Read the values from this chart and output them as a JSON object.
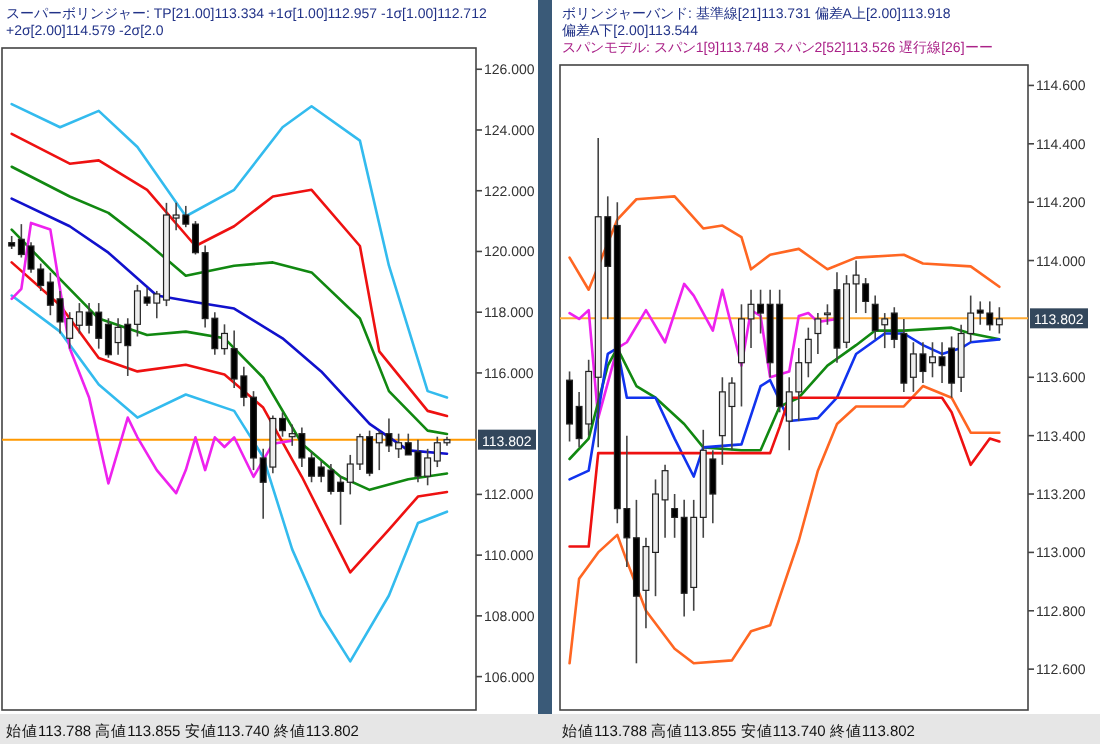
{
  "chart_data": [
    {
      "type": "candlestick",
      "title": "スーパーボリンジャー: TP[21.00]113.334 +1σ[1.00]112.957 -1σ[1.00]112.712 +2σ[2.00]114.579 -2σ[2.0",
      "annotations": [
        "始値113.788 高値113.855 安値113.740 終値113.802"
      ],
      "tick_labels": "y",
      "ylim": [
        104.9,
        126.7
      ],
      "yticks": [
        {
          "value": 106,
          "label": "106.000"
        },
        {
          "value": 108,
          "label": "108.000"
        },
        {
          "value": 110,
          "label": "110.000"
        },
        {
          "value": 112,
          "label": "112.000"
        },
        {
          "value": 116,
          "label": "116.000"
        },
        {
          "value": 118,
          "label": "118.000"
        },
        {
          "value": 120,
          "label": "120.000"
        },
        {
          "value": 122,
          "label": "122.000"
        },
        {
          "value": 124,
          "label": "124.000"
        },
        {
          "value": 126,
          "label": "126.000"
        }
      ],
      "categories": [
        null,
        null,
        null,
        null,
        null,
        null,
        null,
        null,
        null,
        null,
        null,
        null,
        null,
        null,
        null,
        null,
        null,
        null,
        null,
        null,
        null,
        null,
        null,
        null,
        null,
        null,
        null,
        null,
        null,
        null,
        null,
        null,
        null,
        null,
        null,
        null,
        null,
        null,
        null,
        null,
        null,
        null,
        null,
        null,
        null,
        null
      ],
      "ohlc": [
        [
          120.29,
          120.51,
          120.08,
          120.18
        ],
        [
          120.4,
          120.9,
          119.8,
          119.9
        ],
        [
          120.18,
          120.3,
          119.3,
          119.42
        ],
        [
          119.42,
          119.6,
          118.7,
          118.88
        ],
        [
          118.99,
          119.3,
          117.9,
          118.23
        ],
        [
          118.44,
          118.7,
          117.3,
          117.68
        ],
        [
          117.14,
          118.0,
          116.8,
          117.79
        ],
        [
          117.57,
          118.3,
          117.3,
          118.01
        ],
        [
          118.0,
          118.3,
          117.3,
          117.57
        ],
        [
          118.0,
          118.3,
          116.8,
          117.14
        ],
        [
          117.6,
          117.8,
          116.5,
          116.6
        ],
        [
          117.0,
          117.8,
          116.6,
          117.5
        ],
        [
          117.6,
          117.8,
          115.9,
          116.9
        ],
        [
          117.6,
          118.9,
          117.2,
          118.7
        ],
        [
          118.5,
          118.8,
          118.2,
          118.3
        ],
        [
          118.3,
          118.7,
          117.8,
          118.6
        ],
        [
          118.4,
          121.6,
          118.2,
          121.2
        ],
        [
          121.1,
          121.6,
          120.7,
          121.2
        ],
        [
          121.2,
          121.5,
          120.8,
          120.9
        ],
        [
          120.9,
          121.0,
          119.9,
          119.96
        ],
        [
          119.96,
          120.2,
          117.5,
          117.79
        ],
        [
          117.8,
          118.0,
          116.6,
          116.8
        ],
        [
          116.8,
          117.6,
          116.6,
          117.3
        ],
        [
          116.8,
          117.4,
          115.5,
          115.8
        ],
        [
          115.9,
          116.2,
          114.9,
          115.2
        ],
        [
          115.2,
          115.4,
          112.8,
          113.2
        ],
        [
          113.2,
          113.5,
          111.2,
          112.4
        ],
        [
          112.9,
          114.6,
          112.7,
          114.5
        ],
        [
          114.5,
          114.7,
          113.9,
          114.1
        ],
        [
          113.9,
          114.3,
          113.6,
          114.0
        ],
        [
          114.0,
          114.2,
          112.9,
          113.2
        ],
        [
          113.2,
          113.4,
          112.4,
          112.6
        ],
        [
          112.9,
          113.1,
          112.4,
          112.6
        ],
        [
          112.8,
          113.0,
          112.0,
          112.1
        ],
        [
          112.4,
          112.6,
          111.0,
          112.1
        ],
        [
          112.4,
          113.3,
          112.0,
          113.0
        ],
        [
          113.0,
          114.0,
          112.8,
          113.9
        ],
        [
          113.9,
          114.1,
          112.6,
          112.7
        ],
        [
          113.7,
          114.1,
          112.8,
          114.0
        ],
        [
          114.0,
          114.5,
          113.4,
          113.6
        ],
        [
          113.5,
          114.0,
          113.2,
          113.7
        ],
        [
          113.7,
          114.0,
          113.3,
          113.3
        ],
        [
          113.4,
          113.8,
          112.4,
          112.6
        ],
        [
          112.6,
          113.5,
          112.3,
          113.2
        ],
        [
          113.1,
          113.9,
          112.9,
          113.7
        ],
        [
          113.7,
          113.9,
          113.6,
          113.8
        ]
      ],
      "series": [
        {
          "type": "line",
          "color": "#33bbee",
          "values": [
            124.85,
            null,
            null,
            null,
            null,
            124.09,
            null,
            null,
            null,
            124.63,
            null,
            null,
            null,
            123.44,
            null,
            null,
            null,
            null,
            121.16,
            null,
            null,
            null,
            null,
            122.03,
            null,
            null,
            null,
            null,
            124.09,
            null,
            null,
            124.78,
            null,
            null,
            null,
            null,
            123.65,
            null,
            null,
            119.53,
            null,
            null,
            null,
            115.4,
            null,
            115.19
          ]
        },
        {
          "type": "line",
          "color": "#ee1111",
          "values": [
            123.87,
            null,
            null,
            null,
            null,
            null,
            122.89,
            null,
            null,
            123.0,
            null,
            null,
            null,
            null,
            122.03,
            null,
            null,
            null,
            null,
            120.18,
            null,
            null,
            null,
            120.83,
            null,
            null,
            null,
            121.81,
            null,
            null,
            null,
            122.03,
            null,
            null,
            null,
            null,
            120.18,
            null,
            116.71,
            null,
            null,
            null,
            null,
            114.75,
            null,
            114.58
          ]
        },
        {
          "type": "line",
          "color": "#118811",
          "values": [
            122.79,
            null,
            null,
            null,
            null,
            null,
            121.81,
            null,
            null,
            null,
            121.27,
            null,
            null,
            null,
            120.29,
            null,
            null,
            null,
            119.2,
            null,
            null,
            null,
            null,
            119.53,
            null,
            null,
            null,
            119.64,
            null,
            null,
            null,
            119.31,
            null,
            null,
            null,
            null,
            117.79,
            null,
            null,
            115.4,
            null,
            null,
            null,
            114.1,
            null,
            113.99
          ]
        },
        {
          "type": "line",
          "color": "#1111cc",
          "values": [
            121.74,
            null,
            null,
            null,
            null,
            null,
            120.83,
            null,
            null,
            null,
            119.96,
            null,
            null,
            null,
            null,
            118.55,
            null,
            null,
            null,
            118.33,
            null,
            null,
            null,
            118.12,
            null,
            null,
            null,
            null,
            117.14,
            null,
            null,
            null,
            116.05,
            null,
            null,
            null,
            null,
            114.32,
            null,
            null,
            null,
            113.45,
            null,
            null,
            null,
            113.34
          ]
        },
        {
          "type": "line",
          "color": "#118811",
          "values": [
            120.72,
            null,
            null,
            null,
            null,
            119.09,
            null,
            null,
            null,
            117.79,
            null,
            null,
            null,
            null,
            117.25,
            null,
            null,
            null,
            117.36,
            null,
            null,
            null,
            117.14,
            null,
            null,
            null,
            115.84,
            null,
            null,
            null,
            113.67,
            null,
            null,
            null,
            112.58,
            null,
            null,
            112.15,
            null,
            null,
            null,
            112.5,
            null,
            null,
            null,
            112.69
          ]
        },
        {
          "type": "line",
          "color": "#ee1111",
          "values": [
            119.64,
            null,
            null,
            null,
            null,
            118.23,
            null,
            null,
            null,
            116.49,
            null,
            null,
            null,
            116.05,
            null,
            null,
            null,
            null,
            116.27,
            null,
            null,
            null,
            115.95,
            null,
            null,
            null,
            114.86,
            null,
            null,
            null,
            112.58,
            null,
            null,
            null,
            null,
            109.43,
            null,
            null,
            null,
            110.84,
            null,
            null,
            111.93,
            null,
            null,
            112.08
          ]
        },
        {
          "type": "line",
          "color": "#33bbee",
          "values": [
            118.55,
            null,
            null,
            null,
            null,
            117.36,
            null,
            null,
            null,
            115.62,
            null,
            null,
            null,
            114.53,
            null,
            null,
            null,
            null,
            115.29,
            null,
            null,
            null,
            null,
            114.75,
            null,
            null,
            113.23,
            null,
            null,
            110.19,
            null,
            null,
            108.02,
            null,
            null,
            106.5,
            null,
            null,
            null,
            108.67,
            null,
            null,
            111.06,
            null,
            null,
            111.43
          ]
        },
        {
          "type": "line",
          "color": "#ee22ee",
          "values": [
            118.44,
            118.77,
            120.94,
            null,
            120.72,
            null,
            116.81,
            null,
            115.19,
            null,
            112.36,
            null,
            114.53,
            113.88,
            null,
            112.8,
            null,
            112.04,
            112.8,
            113.88,
            112.8,
            113.88,
            113.56,
            113.88,
            null,
            112.58,
            null,
            113.67,
            null,
            113.77,
            null,
            null,
            null,
            null,
            null,
            null,
            null,
            null,
            null,
            null,
            null,
            null,
            null,
            null,
            null,
            null
          ]
        }
      ],
      "ref_lines": [
        {
          "axis": "y",
          "value": 113.802,
          "label": "113.802",
          "color": "#ff9900"
        }
      ]
    },
    {
      "type": "candlestick",
      "title": "ボリンジャーバンド: 基準線[21]113.731 偏差A上[2.00]113.918 偏差A下[2.00]113.544",
      "subtitle": "スパンモデル: スパン1[9]113.748 スパン2[52]113.526 遅行線[26]ーー",
      "annotations": [
        "始値113.788 高値113.855 安値113.740 終値113.802"
      ],
      "tick_labels": "y",
      "ylim": [
        112.46,
        114.67
      ],
      "yticks": [
        {
          "value": 112.6,
          "label": "112.600"
        },
        {
          "value": 112.8,
          "label": "112.800"
        },
        {
          "value": 113.0,
          "label": "113.000"
        },
        {
          "value": 113.2,
          "label": "113.200"
        },
        {
          "value": 113.4,
          "label": "113.400"
        },
        {
          "value": 113.6,
          "label": "113.600"
        },
        {
          "value": 114.0,
          "label": "114.000"
        },
        {
          "value": 114.2,
          "label": "114.200"
        },
        {
          "value": 114.4,
          "label": "114.400"
        },
        {
          "value": 114.6,
          "label": "114.600"
        }
      ],
      "categories": [
        null,
        null,
        null,
        null,
        null,
        null,
        null,
        null,
        null,
        null,
        null,
        null,
        null,
        null,
        null,
        null,
        null,
        null,
        null,
        null,
        null,
        null,
        null,
        null,
        null,
        null,
        null,
        null,
        null,
        null,
        null,
        null,
        null,
        null,
        null,
        null,
        null,
        null,
        null,
        null,
        null,
        null,
        null,
        null,
        null,
        null
      ],
      "ohlc": [
        [
          113.59,
          113.62,
          113.38,
          113.44
        ],
        [
          113.5,
          113.55,
          113.36,
          113.39
        ],
        [
          113.44,
          113.66,
          113.4,
          113.62
        ],
        [
          113.6,
          114.42,
          113.36,
          114.15
        ],
        [
          114.15,
          114.22,
          113.8,
          113.98
        ],
        [
          114.12,
          114.2,
          113.1,
          113.15
        ],
        [
          113.15,
          113.4,
          112.95,
          113.05
        ],
        [
          113.05,
          113.18,
          112.62,
          112.85
        ],
        [
          112.87,
          113.05,
          112.74,
          113.02
        ],
        [
          113.0,
          113.25,
          112.85,
          113.2
        ],
        [
          113.18,
          113.3,
          113.05,
          113.28
        ],
        [
          113.15,
          113.2,
          113.05,
          113.12
        ],
        [
          113.12,
          113.18,
          112.78,
          112.86
        ],
        [
          112.88,
          113.18,
          112.8,
          113.12
        ],
        [
          113.12,
          113.42,
          113.05,
          113.35
        ],
        [
          113.32,
          113.35,
          113.1,
          113.2
        ],
        [
          113.4,
          113.6,
          113.3,
          113.55
        ],
        [
          113.5,
          113.6,
          113.35,
          113.58
        ],
        [
          113.65,
          113.85,
          113.5,
          113.8
        ],
        [
          113.8,
          113.9,
          113.7,
          113.85
        ],
        [
          113.85,
          113.9,
          113.75,
          113.82
        ],
        [
          113.85,
          113.9,
          113.6,
          113.65
        ],
        [
          113.85,
          113.9,
          113.48,
          113.5
        ],
        [
          113.45,
          113.6,
          113.35,
          113.55
        ],
        [
          113.55,
          113.7,
          113.45,
          113.65
        ],
        [
          113.65,
          113.77,
          113.6,
          113.73
        ],
        [
          113.75,
          113.82,
          113.68,
          113.8
        ],
        [
          113.82,
          113.85,
          113.78,
          113.82
        ],
        [
          113.9,
          113.96,
          113.65,
          113.7
        ],
        [
          113.72,
          113.95,
          113.7,
          113.92
        ],
        [
          113.92,
          114.0,
          113.82,
          113.95
        ],
        [
          113.92,
          113.94,
          113.82,
          113.86
        ],
        [
          113.85,
          113.88,
          113.73,
          113.76
        ],
        [
          113.78,
          113.82,
          113.7,
          113.8
        ],
        [
          113.82,
          113.84,
          113.7,
          113.73
        ],
        [
          113.75,
          113.8,
          113.55,
          113.58
        ],
        [
          113.6,
          113.72,
          113.55,
          113.68
        ],
        [
          113.68,
          113.72,
          113.58,
          113.62
        ],
        [
          113.65,
          113.72,
          113.6,
          113.67
        ],
        [
          113.67,
          113.72,
          113.58,
          113.64
        ],
        [
          113.7,
          113.74,
          113.53,
          113.58
        ],
        [
          113.6,
          113.78,
          113.55,
          113.75
        ],
        [
          113.75,
          113.88,
          113.72,
          113.82
        ],
        [
          113.83,
          113.86,
          113.78,
          113.82
        ],
        [
          113.82,
          113.86,
          113.76,
          113.78
        ],
        [
          113.78,
          113.84,
          113.75,
          113.8
        ]
      ],
      "series": [
        {
          "type": "line",
          "color": "#ff6622",
          "values": [
            114.01,
            null,
            113.9,
            null,
            null,
            114.14,
            null,
            114.21,
            null,
            null,
            null,
            114.22,
            null,
            null,
            114.11,
            null,
            114.12,
            null,
            114.08,
            113.97,
            null,
            114.02,
            null,
            null,
            114.04,
            null,
            null,
            113.97,
            null,
            null,
            114.01,
            null,
            null,
            null,
            null,
            114.02,
            null,
            113.99,
            null,
            null,
            null,
            null,
            113.98,
            null,
            null,
            113.91
          ]
        },
        {
          "type": "line",
          "color": "#ff6622",
          "values": [
            112.62,
            112.91,
            null,
            113.0,
            null,
            113.06,
            112.97,
            null,
            112.8,
            null,
            null,
            112.67,
            null,
            112.62,
            null,
            null,
            null,
            112.63,
            null,
            112.73,
            null,
            112.75,
            null,
            null,
            113.04,
            null,
            113.28,
            null,
            113.44,
            null,
            113.5,
            null,
            null,
            null,
            null,
            113.5,
            null,
            113.57,
            null,
            null,
            113.53,
            null,
            113.41,
            null,
            null,
            113.41
          ]
        },
        {
          "type": "line",
          "color": "#ee22ee",
          "values": [
            113.82,
            113.8,
            113.83,
            113.46,
            null,
            113.7,
            113.72,
            null,
            113.83,
            null,
            113.72,
            null,
            113.92,
            113.88,
            null,
            113.76,
            113.9,
            null,
            113.64,
            113.83,
            113.81,
            113.6,
            null,
            113.62,
            113.81,
            113.82,
            113.79,
            null,
            113.8,
            null,
            null,
            null,
            null,
            null,
            null,
            null,
            null,
            null,
            null,
            null,
            null,
            null,
            null,
            null,
            null,
            null
          ]
        },
        {
          "type": "line",
          "color": "#118811",
          "values": [
            113.32,
            null,
            113.39,
            null,
            113.64,
            113.7,
            null,
            113.57,
            null,
            113.53,
            null,
            null,
            113.44,
            null,
            113.36,
            null,
            null,
            null,
            113.35,
            null,
            113.35,
            null,
            113.5,
            null,
            113.53,
            null,
            null,
            113.64,
            null,
            null,
            113.71,
            null,
            113.76,
            null,
            null,
            113.76,
            null,
            null,
            null,
            null,
            113.77,
            null,
            113.75,
            null,
            null,
            113.73
          ]
        },
        {
          "type": "line",
          "color": "#1133ee",
          "values": [
            113.25,
            null,
            113.28,
            null,
            113.68,
            113.7,
            113.53,
            null,
            null,
            113.53,
            null,
            113.39,
            null,
            113.26,
            113.36,
            null,
            null,
            null,
            113.37,
            null,
            113.57,
            113.59,
            null,
            113.45,
            null,
            null,
            113.46,
            null,
            113.53,
            null,
            113.68,
            null,
            null,
            113.75,
            null,
            113.75,
            null,
            113.71,
            null,
            113.68,
            null,
            113.7,
            113.72,
            null,
            null,
            113.73
          ]
        },
        {
          "type": "line",
          "color": "#ee1111",
          "values": [
            113.02,
            113.02,
            113.02,
            113.34,
            113.34,
            113.34,
            113.34,
            113.34,
            113.34,
            113.34,
            113.34,
            113.34,
            113.34,
            113.34,
            113.34,
            113.34,
            113.34,
            113.34,
            113.34,
            113.34,
            113.34,
            113.34,
            113.43,
            113.53,
            113.53,
            113.53,
            113.53,
            113.53,
            113.53,
            113.53,
            113.53,
            113.53,
            113.53,
            113.53,
            113.53,
            113.53,
            113.53,
            113.53,
            113.53,
            113.53,
            113.48,
            null,
            113.3,
            null,
            113.39,
            113.38
          ]
        }
      ],
      "ref_lines": [
        {
          "axis": "y",
          "value": 113.802,
          "label": "113.802",
          "color": "#ffaa33"
        }
      ]
    }
  ]
}
